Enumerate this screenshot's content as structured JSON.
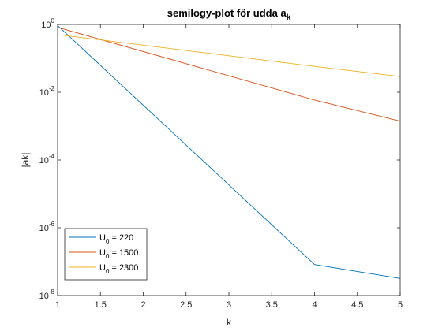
{
  "chart_data": {
    "type": "line",
    "title": "semilogy-plot för udda a",
    "title_subscript": "k",
    "xlabel": "k",
    "ylabel": "|ak|",
    "xlim": [
      1,
      5
    ],
    "ylim": [
      1e-08,
      1
    ],
    "yscale": "log",
    "x_ticks": [
      "1",
      "1.5",
      "2",
      "2.5",
      "3",
      "3.5",
      "4",
      "4.5",
      "5"
    ],
    "y_ticks": [
      {
        "base": "10",
        "exp": "-8",
        "value": 1e-08
      },
      {
        "base": "10",
        "exp": "-6",
        "value": 1e-06
      },
      {
        "base": "10",
        "exp": "-4",
        "value": 0.0001
      },
      {
        "base": "10",
        "exp": "-2",
        "value": 0.01
      },
      {
        "base": "10",
        "exp": "0",
        "value": 1
      }
    ],
    "grid": false,
    "legend_position": "bottom-left",
    "x": [
      1,
      4,
      5
    ],
    "series": [
      {
        "name_main": "U",
        "name_sub": "0",
        "name_rest": " = 220",
        "color": "#0072BD",
        "values": [
          0.93,
          8.2e-08,
          3.2e-08
        ]
      },
      {
        "name_main": "U",
        "name_sub": "0",
        "name_rest": " = 1500",
        "color": "#D95319",
        "values": [
          0.82,
          0.0059,
          0.0014
        ]
      },
      {
        "name_main": "U",
        "name_sub": "0",
        "name_rest": " = 2300",
        "color": "#EDB120",
        "values": [
          0.5,
          0.058,
          0.029
        ]
      }
    ]
  }
}
